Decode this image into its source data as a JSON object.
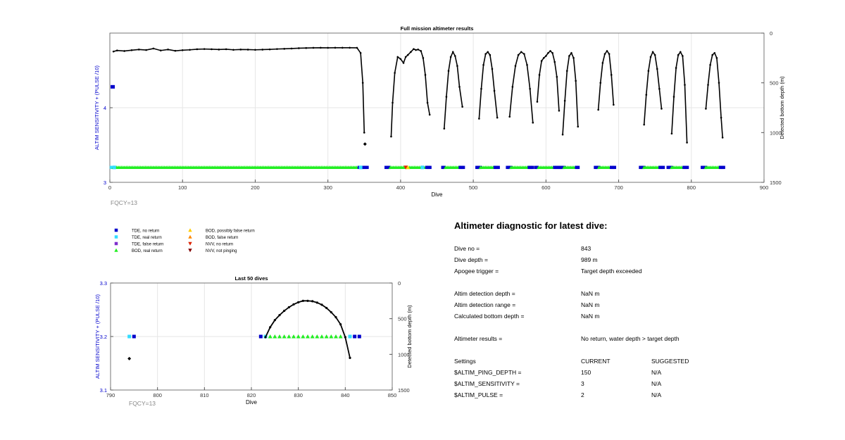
{
  "chart_data": [
    {
      "type": "scatter",
      "title": "Full mission altimeter results",
      "xlabel": "Dive",
      "ylabel": "ALTIM SENSITIVITY + (PULSE /10)",
      "y2label": "Detected bottom depth (m)",
      "xlim": [
        0,
        900
      ],
      "ylim": [
        3,
        5
      ],
      "y2lim": [
        1500,
        0
      ],
      "x_ticks": [
        0,
        100,
        200,
        300,
        400,
        500,
        600,
        700,
        800,
        900
      ],
      "y_ticks": [
        3,
        4
      ],
      "y2_ticks": [
        0,
        500,
        1000,
        1500
      ],
      "footnote": "FQCY=13",
      "grid": true,
      "depth_plateau": [
        [
          5,
          185
        ],
        [
          10,
          175
        ],
        [
          20,
          180
        ],
        [
          30,
          172
        ],
        [
          40,
          165
        ],
        [
          50,
          170
        ],
        [
          60,
          155
        ],
        [
          70,
          175
        ],
        [
          80,
          165
        ],
        [
          90,
          178
        ],
        [
          100,
          172
        ],
        [
          110,
          168
        ],
        [
          120,
          162
        ],
        [
          130,
          160
        ],
        [
          140,
          162
        ],
        [
          150,
          165
        ],
        [
          160,
          162
        ],
        [
          170,
          168
        ],
        [
          180,
          165
        ],
        [
          190,
          166
        ],
        [
          200,
          168
        ],
        [
          210,
          166
        ],
        [
          220,
          164
        ],
        [
          230,
          160
        ],
        [
          240,
          158
        ],
        [
          250,
          155
        ],
        [
          260,
          152
        ],
        [
          270,
          150
        ],
        [
          280,
          148
        ],
        [
          290,
          147
        ],
        [
          300,
          148
        ],
        [
          310,
          147
        ],
        [
          320,
          147
        ],
        [
          330,
          147
        ],
        [
          340,
          148
        ],
        [
          345,
          200
        ],
        [
          348,
          500
        ],
        [
          350,
          1000
        ]
      ],
      "depth_arches": [
        {
          "x": [
            387,
            389,
            392,
            396,
            400,
            404,
            407,
            410,
            414,
            418,
            421,
            424,
            428,
            431,
            434,
            437,
            440
          ],
          "y": [
            1040,
            700,
            400,
            240,
            260,
            300,
            240,
            220,
            190,
            160,
            170,
            165,
            180,
            250,
            420,
            700,
            820
          ]
        },
        {
          "x": [
            460,
            463,
            466,
            469,
            472,
            475,
            478,
            481,
            485
          ],
          "y": [
            960,
            640,
            380,
            240,
            190,
            230,
            330,
            540,
            740
          ]
        },
        {
          "x": [
            508,
            511,
            514,
            517,
            520,
            523,
            526,
            529,
            533
          ],
          "y": [
            860,
            560,
            320,
            210,
            190,
            220,
            360,
            580,
            850
          ]
        },
        {
          "x": [
            550,
            554,
            558,
            562,
            566,
            570,
            574,
            578,
            582
          ],
          "y": [
            840,
            540,
            330,
            220,
            190,
            210,
            320,
            560,
            900
          ]
        },
        {
          "x": [
            588,
            591,
            594,
            597,
            600,
            603,
            606,
            609,
            612,
            615,
            618
          ],
          "y": [
            690,
            420,
            280,
            250,
            230,
            200,
            180,
            200,
            290,
            440,
            780
          ]
        },
        {
          "x": [
            623,
            626,
            629,
            632,
            635,
            638,
            641,
            644
          ],
          "y": [
            1020,
            680,
            380,
            230,
            200,
            250,
            480,
            940
          ]
        },
        {
          "x": [
            672,
            675,
            678,
            681,
            684,
            687,
            690,
            693
          ],
          "y": [
            770,
            500,
            300,
            210,
            180,
            210,
            420,
            720
          ]
        },
        {
          "x": [
            735,
            738,
            741,
            744,
            747,
            750,
            753,
            756,
            759
          ],
          "y": [
            920,
            620,
            380,
            240,
            190,
            220,
            360,
            560,
            760
          ]
        },
        {
          "x": [
            773,
            776,
            779,
            782,
            785,
            788,
            791,
            794
          ],
          "y": [
            1010,
            640,
            350,
            220,
            190,
            230,
            520,
            1100
          ]
        },
        {
          "x": [
            820,
            823,
            826,
            829,
            832,
            835,
            838,
            841,
            843
          ],
          "y": [
            760,
            520,
            320,
            220,
            200,
            250,
            500,
            850,
            1050
          ]
        }
      ],
      "depth_isolated": [
        [
          5,
          300
        ],
        [
          351,
          1115
        ]
      ],
      "status_segments": [
        {
          "code": "TDE_real_return",
          "x_from": 2,
          "x_to": 8
        },
        {
          "code": "BOD_real_return",
          "x_from": 5,
          "x_to": 345
        },
        {
          "code": "TDE_no_return",
          "x_from": 343,
          "x_to": 355
        },
        {
          "code": "TDE_no_return",
          "x_from": 380,
          "x_to": 386
        },
        {
          "code": "BOD_real_return",
          "x_from": 386,
          "x_to": 437
        },
        {
          "code": "TDE_no_return",
          "x_from": 436,
          "x_to": 442
        },
        {
          "code": "TDE_no_return",
          "x_from": 458,
          "x_to": 462
        },
        {
          "code": "BOD_real_return",
          "x_from": 462,
          "x_to": 483
        },
        {
          "code": "TDE_no_return",
          "x_from": 482,
          "x_to": 488
        },
        {
          "code": "TDE_no_return",
          "x_from": 505,
          "x_to": 510
        },
        {
          "code": "BOD_real_return",
          "x_from": 510,
          "x_to": 530
        },
        {
          "code": "TDE_no_return",
          "x_from": 530,
          "x_to": 535
        },
        {
          "code": "TDE_no_return",
          "x_from": 547,
          "x_to": 552
        },
        {
          "code": "BOD_real_return",
          "x_from": 552,
          "x_to": 577
        },
        {
          "code": "TDE_no_return",
          "x_from": 577,
          "x_to": 583
        },
        {
          "code": "TDE_no_return",
          "x_from": 586,
          "x_to": 590
        },
        {
          "code": "BOD_real_return",
          "x_from": 590,
          "x_to": 612
        },
        {
          "code": "TDE_no_return",
          "x_from": 612,
          "x_to": 619
        },
        {
          "code": "TDE_no_return",
          "x_from": 620,
          "x_to": 625
        },
        {
          "code": "BOD_real_return",
          "x_from": 625,
          "x_to": 642
        },
        {
          "code": "TDE_no_return",
          "x_from": 642,
          "x_to": 646
        },
        {
          "code": "TDE_no_return",
          "x_from": 668,
          "x_to": 673
        },
        {
          "code": "BOD_real_return",
          "x_from": 673,
          "x_to": 690
        },
        {
          "code": "TDE_no_return",
          "x_from": 690,
          "x_to": 695
        },
        {
          "code": "TDE_no_return",
          "x_from": 730,
          "x_to": 735
        },
        {
          "code": "BOD_real_return",
          "x_from": 735,
          "x_to": 757
        },
        {
          "code": "TDE_no_return",
          "x_from": 757,
          "x_to": 762
        },
        {
          "code": "TDE_no_return",
          "x_from": 768,
          "x_to": 773
        },
        {
          "code": "BOD_real_return",
          "x_from": 773,
          "x_to": 790
        },
        {
          "code": "TDE_no_return",
          "x_from": 790,
          "x_to": 795
        },
        {
          "code": "TDE_no_return",
          "x_from": 815,
          "x_to": 820
        },
        {
          "code": "BOD_real_return",
          "x_from": 820,
          "x_to": 840
        },
        {
          "code": "TDE_no_return",
          "x_from": 840,
          "x_to": 845
        }
      ],
      "status_points": [
        {
          "code": "NVV_no_return",
          "x": 407
        },
        {
          "code": "BOD_possibly_false_return",
          "x": 410
        },
        {
          "code": "TDE_real_return",
          "x": 6
        },
        {
          "code": "TDE_real_return",
          "x": 345
        },
        {
          "code": "TDE_real_return",
          "x": 430
        }
      ]
    },
    {
      "type": "scatter",
      "title": "Last 50 dives",
      "xlabel": "Dive",
      "ylabel": "ALTIM SENSITIVITY + (PULSE /10)",
      "y2label": "Detected bottom depth (m)",
      "xlim": [
        790,
        850
      ],
      "ylim": [
        3.1,
        3.3
      ],
      "y2lim": [
        1500,
        0
      ],
      "x_ticks": [
        790,
        800,
        810,
        820,
        830,
        840,
        850
      ],
      "y_ticks": [
        3.2,
        3.3
      ],
      "y2_ticks": [
        0,
        500,
        1000,
        1500
      ],
      "footnote": "FQCY=13",
      "grid": true,
      "depth_line": {
        "x": [
          823,
          824,
          825,
          826,
          827,
          828,
          829,
          830,
          831,
          832,
          833,
          834,
          835,
          836,
          837,
          838,
          839,
          840,
          841
        ],
        "y": [
          760,
          620,
          520,
          450,
          390,
          340,
          300,
          270,
          250,
          250,
          255,
          275,
          305,
          350,
          410,
          480,
          580,
          760,
          1050
        ]
      },
      "depth_isolated": [
        [
          794,
          1060
        ]
      ],
      "status_points": [
        {
          "code": "TDE_real_return",
          "x": 794
        },
        {
          "code": "TDE_no_return",
          "x": 795
        },
        {
          "code": "TDE_no_return",
          "x": 822
        },
        {
          "code": "TDE_real_return",
          "x": 823
        },
        {
          "code": "BOD_real_return",
          "x": 824
        },
        {
          "code": "BOD_real_return",
          "x": 825
        },
        {
          "code": "BOD_real_return",
          "x": 826
        },
        {
          "code": "BOD_real_return",
          "x": 827
        },
        {
          "code": "BOD_real_return",
          "x": 828
        },
        {
          "code": "BOD_real_return",
          "x": 829
        },
        {
          "code": "BOD_real_return",
          "x": 830
        },
        {
          "code": "BOD_real_return",
          "x": 831
        },
        {
          "code": "BOD_real_return",
          "x": 832
        },
        {
          "code": "BOD_real_return",
          "x": 833
        },
        {
          "code": "BOD_real_return",
          "x": 834
        },
        {
          "code": "BOD_real_return",
          "x": 835
        },
        {
          "code": "BOD_real_return",
          "x": 836
        },
        {
          "code": "BOD_real_return",
          "x": 837
        },
        {
          "code": "BOD_real_return",
          "x": 838
        },
        {
          "code": "BOD_real_return",
          "x": 839
        },
        {
          "code": "TDE_real_return",
          "x": 841
        },
        {
          "code": "TDE_no_return",
          "x": 842
        },
        {
          "code": "TDE_no_return",
          "x": 843
        }
      ]
    }
  ],
  "legend": [
    {
      "code": "TDE_no_return",
      "label": "TDE, no return",
      "marker": "square",
      "color": "#0000CC"
    },
    {
      "code": "TDE_real_return",
      "label": "TDE, real return",
      "marker": "square",
      "color": "#33DDFF"
    },
    {
      "code": "TDE_false_return",
      "label": "TDE, false return",
      "marker": "square",
      "color": "#7F2FCC"
    },
    {
      "code": "BOD_real_return",
      "label": "BOD, real return",
      "marker": "triangle-up",
      "color": "#22EE22"
    },
    {
      "code": "BOD_possibly_false_return",
      "label": "BOD, possibly false return",
      "marker": "triangle-up",
      "color": "#FFCC00"
    },
    {
      "code": "BOD_false_return",
      "label": "BOD, false return",
      "marker": "triangle-up",
      "color": "#FF8800"
    },
    {
      "code": "NVV_no_return",
      "label": "NVV, no return",
      "marker": "triangle-down",
      "color": "#DD2200"
    },
    {
      "code": "NVV_not_pinging",
      "label": "NVV, not pinging",
      "marker": "triangle-down",
      "color": "#800000"
    }
  ],
  "colors": {
    "axis_blue": "#0000CC",
    "depth_line": "#000000",
    "grid": "#e6e6e6",
    "footnote": "#888888"
  },
  "diagnostic": {
    "title": "Altimeter diagnostic for latest dive:",
    "rows": [
      {
        "label": "Dive no =",
        "value": "843",
        "suggested": ""
      },
      {
        "label": "Dive depth =",
        "value": "989 m",
        "suggested": ""
      },
      {
        "label": "Apogee trigger =",
        "value": "Target depth exceeded",
        "suggested": ""
      },
      {
        "label": "Altim detection depth =",
        "value": "NaN m",
        "suggested": ""
      },
      {
        "label": "Altim detection range =",
        "value": "NaN m",
        "suggested": ""
      },
      {
        "label": "Calculated bottom depth =",
        "value": "NaN m",
        "suggested": ""
      },
      {
        "label": "Altimeter results =",
        "value": "No return, water depth > target depth",
        "suggested": ""
      },
      {
        "label": "Settings",
        "value": "CURRENT",
        "suggested": "SUGGESTED"
      },
      {
        "label": "$ALTIM_PING_DEPTH =",
        "value": "150",
        "suggested": "N/A"
      },
      {
        "label": "$ALTIM_SENSITIVITY =",
        "value": "3",
        "suggested": "N/A"
      },
      {
        "label": "$ALTIM_PULSE =",
        "value": "2",
        "suggested": "N/A"
      }
    ]
  }
}
